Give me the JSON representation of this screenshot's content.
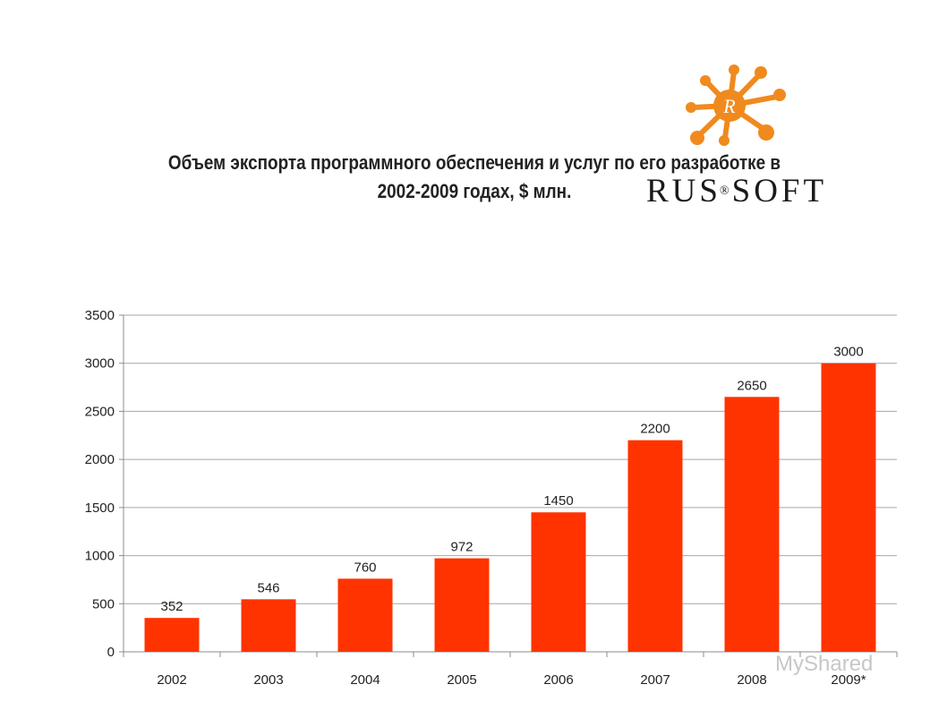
{
  "header": {
    "title_line1": "Объем экспорта программного обеспечения и услуг по его разработке в",
    "title_line2": "2002-2009 годах, $ млн."
  },
  "logo": {
    "emblem_letter": "R",
    "brand_main": "RUS",
    "brand_registered": "®",
    "brand_end": "SOFT",
    "emblem_color": "#f08a1e"
  },
  "watermark": "MyShared",
  "chart_data": {
    "type": "bar",
    "title": "Объем экспорта программного обеспечения и услуг по его разработке в 2002-2009 годах, $ млн.",
    "xlabel": "",
    "ylabel": "",
    "categories": [
      "2002",
      "2003",
      "2004",
      "2005",
      "2006",
      "2007",
      "2008",
      "2009*"
    ],
    "values": [
      352,
      546,
      760,
      972,
      1450,
      2200,
      2650,
      3000
    ],
    "data_labels": [
      "352",
      "546",
      "760",
      "972",
      "1450",
      "2200",
      "2650",
      "3000"
    ],
    "ylim": [
      0,
      3500
    ],
    "yticks": [
      0,
      500,
      1000,
      1500,
      2000,
      2500,
      3000,
      3500
    ],
    "ytick_labels": [
      "0",
      "500",
      "1000",
      "1500",
      "2000",
      "2500",
      "3000",
      "3500"
    ],
    "grid": true,
    "legend": "none",
    "bar_color": "#ff3300"
  }
}
